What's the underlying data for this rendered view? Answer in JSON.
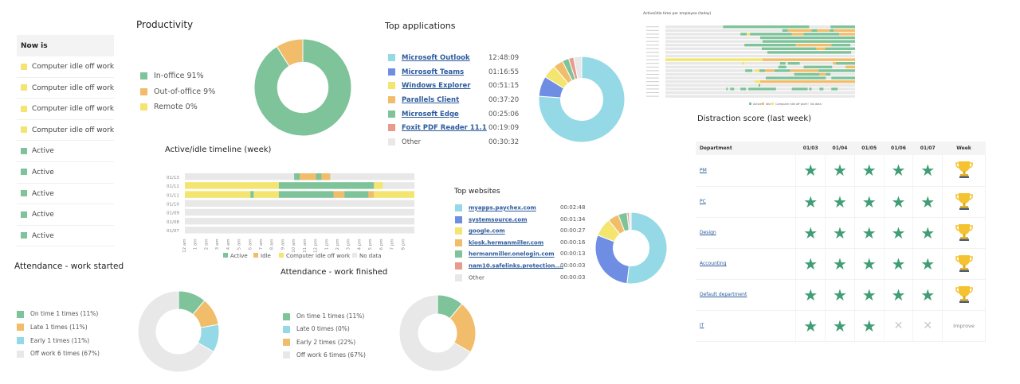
{
  "now_is": {
    "header": "Now is",
    "rows": [
      {
        "status": "Computer idle off work",
        "color": "#f3e56f"
      },
      {
        "status": "Computer idle off work",
        "color": "#f3e56f"
      },
      {
        "status": "Computer idle off work",
        "color": "#f3e56f"
      },
      {
        "status": "Computer idle off work",
        "color": "#f3e56f"
      },
      {
        "status": "Active",
        "color": "#7ec39a"
      },
      {
        "status": "Active",
        "color": "#7ec39a"
      },
      {
        "status": "Active",
        "color": "#7ec39a"
      },
      {
        "status": "Active",
        "color": "#7ec39a"
      },
      {
        "status": "Active",
        "color": "#7ec39a"
      }
    ]
  },
  "productivity": {
    "title": "Productivity",
    "legend": [
      {
        "label": "In-office 91%",
        "color": "#7ec39a"
      },
      {
        "label": "Out-of-office 9%",
        "color": "#f2bd6a"
      },
      {
        "label": "Remote 0%",
        "color": "#f3e56f"
      }
    ]
  },
  "top_applications": {
    "title": "Top applications",
    "items": [
      {
        "name": "Microsoft Outlook",
        "time": "12:48:09",
        "color": "#94d9e5",
        "link": true
      },
      {
        "name": "Microsoft Teams",
        "time": "01:16:55",
        "color": "#6f8ee3",
        "link": true
      },
      {
        "name": "Windows Explorer",
        "time": "00:51:15",
        "color": "#f3e56f",
        "link": true
      },
      {
        "name": "Parallels Client",
        "time": "00:37:20",
        "color": "#f2bd6a",
        "link": true
      },
      {
        "name": "Microsoft Edge",
        "time": "00:25:06",
        "color": "#7ec39a",
        "link": true
      },
      {
        "name": "Foxit PDF Reader 11.1",
        "time": "00:19:09",
        "color": "#e89a8c",
        "link": true
      },
      {
        "name": "Other",
        "time": "00:30:32",
        "color": "#e8e8e8",
        "link": false
      }
    ]
  },
  "per_employee": {
    "title": "Active/idle time per employee (today)",
    "legend": [
      {
        "label": "Active",
        "color": "#7ec39a"
      },
      {
        "label": "Idle",
        "color": "#f2bd6a"
      },
      {
        "label": "Computer idle off work",
        "color": "#f3e56f"
      },
      {
        "label": "No data",
        "color": "#e8e8e8"
      }
    ]
  },
  "timeline": {
    "title": "Active/idle timeline (week)",
    "legend": [
      {
        "label": "Active",
        "color": "#7ec39a"
      },
      {
        "label": "Idle",
        "color": "#f2bd6a"
      },
      {
        "label": "Computer idle off work",
        "color": "#f3e56f"
      },
      {
        "label": "No data",
        "color": "#e8e8e8"
      }
    ]
  },
  "top_websites": {
    "title": "Top websites",
    "items": [
      {
        "name": "myapps.paychex.com",
        "time": "00:02:48",
        "color": "#94d9e5",
        "link": true
      },
      {
        "name": "systemsource.com",
        "time": "00:01:34",
        "color": "#6f8ee3",
        "link": true
      },
      {
        "name": "google.com",
        "time": "00:00:27",
        "color": "#f3e56f",
        "link": true
      },
      {
        "name": "kiosk.hermanmiller.com",
        "time": "00:00:16",
        "color": "#f2bd6a",
        "link": true
      },
      {
        "name": "hermanmiller.onelogin.com",
        "time": "00:00:13",
        "color": "#7ec39a",
        "link": true
      },
      {
        "name": "nam10.safelinks.protection....",
        "time": "00:00:03",
        "color": "#e89a8c",
        "link": true
      },
      {
        "name": "Other",
        "time": "00:00:03",
        "color": "#e8e8e8",
        "link": false
      }
    ]
  },
  "distraction": {
    "title": "Distraction score (last week)",
    "columns": [
      "Department",
      "01/03",
      "01/04",
      "01/05",
      "01/06",
      "01/07",
      "Week"
    ],
    "rows": [
      {
        "department": "PM",
        "days": [
          "star",
          "star",
          "star",
          "star",
          "star"
        ],
        "week": "trophy"
      },
      {
        "department": "PC",
        "days": [
          "star",
          "star",
          "star",
          "star",
          "star"
        ],
        "week": "trophy"
      },
      {
        "department": "Design",
        "days": [
          "star",
          "star",
          "star",
          "star",
          "star"
        ],
        "week": "trophy"
      },
      {
        "department": "Accounting",
        "days": [
          "star",
          "star",
          "star",
          "star",
          "star"
        ],
        "week": "trophy"
      },
      {
        "department": "Default department",
        "days": [
          "star",
          "star",
          "star",
          "star",
          "star"
        ],
        "week": "trophy"
      },
      {
        "department": "IT",
        "days": [
          "star",
          "star",
          "star",
          "x",
          "x"
        ],
        "week": "Improve"
      }
    ]
  },
  "attendance_started": {
    "title": "Attendance - work started",
    "legend": [
      {
        "label": "On time 1 times (11%)",
        "color": "#7ec39a"
      },
      {
        "label": "Late 1 times (11%)",
        "color": "#f2bd6a"
      },
      {
        "label": "Early 1 times (11%)",
        "color": "#94d9e5"
      },
      {
        "label": "Off work 6 times (67%)",
        "color": "#e8e8e8"
      }
    ]
  },
  "attendance_finished": {
    "title": "Attendance - work finished",
    "legend": [
      {
        "label": "On time 1 times (11%)",
        "color": "#7ec39a"
      },
      {
        "label": "Late 0 times (0%)",
        "color": "#94d9e5"
      },
      {
        "label": "Early 2 times (22%)",
        "color": "#f2bd6a"
      },
      {
        "label": "Off work 6 times (67%)",
        "color": "#e8e8e8"
      }
    ]
  },
  "chart_data": [
    {
      "id": "productivity",
      "type": "pie",
      "title": "Productivity",
      "categories": [
        "In-office",
        "Out-of-office",
        "Remote"
      ],
      "values": [
        91,
        9,
        0
      ],
      "colors": [
        "#7ec39a",
        "#f2bd6a",
        "#f3e56f"
      ]
    },
    {
      "id": "top_applications",
      "type": "pie",
      "title": "Top applications",
      "categories": [
        "Microsoft Outlook",
        "Microsoft Teams",
        "Windows Explorer",
        "Parallels Client",
        "Microsoft Edge",
        "Foxit PDF Reader 11.1",
        "Other"
      ],
      "values": [
        46089,
        4615,
        3075,
        2240,
        1506,
        1149,
        1832
      ],
      "colors": [
        "#94d9e5",
        "#6f8ee3",
        "#f3e56f",
        "#f2bd6a",
        "#7ec39a",
        "#e89a8c",
        "#e8e8e8"
      ]
    },
    {
      "id": "top_websites",
      "type": "pie",
      "title": "Top websites",
      "categories": [
        "myapps.paychex.com",
        "systemsource.com",
        "google.com",
        "kiosk.hermanmiller.com",
        "hermanmiller.onelogin.com",
        "nam10.safelinks.protection....",
        "Other"
      ],
      "values": [
        168,
        94,
        27,
        16,
        13,
        3,
        3
      ],
      "colors": [
        "#94d9e5",
        "#6f8ee3",
        "#f3e56f",
        "#f2bd6a",
        "#7ec39a",
        "#e89a8c",
        "#e8e8e8"
      ]
    },
    {
      "id": "attendance_started",
      "type": "pie",
      "title": "Attendance - work started",
      "categories": [
        "On time",
        "Late",
        "Early",
        "Off work"
      ],
      "values": [
        1,
        1,
        1,
        6
      ],
      "colors": [
        "#7ec39a",
        "#f2bd6a",
        "#94d9e5",
        "#e8e8e8"
      ]
    },
    {
      "id": "attendance_finished",
      "type": "pie",
      "title": "Attendance - work finished",
      "categories": [
        "On time",
        "Late",
        "Early",
        "Off work"
      ],
      "values": [
        1,
        0,
        2,
        6
      ],
      "colors": [
        "#7ec39a",
        "#94d9e5",
        "#f2bd6a",
        "#e8e8e8"
      ]
    },
    {
      "id": "timeline",
      "type": "bar",
      "title": "Active/idle timeline (week)",
      "xlabel": "",
      "ylabel": "",
      "xlim": [
        0,
        21
      ],
      "x_ticks": [
        "12 am",
        "1 am",
        "2 am",
        "3 am",
        "4 am",
        "5 am",
        "6 am",
        "7 am",
        "8 am",
        "9 am",
        "10 am",
        "11 am",
        "12 pm",
        "1 pm",
        "2 pm",
        "3 pm",
        "4 pm",
        "5 pm",
        "6 pm",
        "7 pm",
        "8 pm"
      ],
      "categories": [
        "01/13",
        "01/12",
        "01/11",
        "01/10",
        "01/09",
        "01/08",
        "01/07"
      ],
      "segments": [
        [
          {
            "s": 10,
            "e": 10.5,
            "state": "active"
          },
          {
            "s": 10.5,
            "e": 12,
            "state": "idle"
          },
          {
            "s": 12,
            "e": 12.5,
            "state": "active"
          },
          {
            "s": 12.5,
            "e": 13.3,
            "state": "idle"
          }
        ],
        [
          {
            "s": 0,
            "e": 8.6,
            "state": "offwork"
          },
          {
            "s": 8.6,
            "e": 17.3,
            "state": "active"
          },
          {
            "s": 17.3,
            "e": 18.1,
            "state": "offwork"
          }
        ],
        [
          {
            "s": 0,
            "e": 6,
            "state": "offwork"
          },
          {
            "s": 6,
            "e": 6.3,
            "state": "active"
          },
          {
            "s": 6.3,
            "e": 8.6,
            "state": "offwork"
          },
          {
            "s": 8.6,
            "e": 13.6,
            "state": "active"
          },
          {
            "s": 13.6,
            "e": 14.6,
            "state": "idle"
          },
          {
            "s": 14.6,
            "e": 16.8,
            "state": "active"
          },
          {
            "s": 16.8,
            "e": 17.3,
            "state": "idle"
          },
          {
            "s": 17.3,
            "e": 21,
            "state": "offwork"
          }
        ],
        [],
        [],
        [],
        []
      ],
      "state_colors": {
        "active": "#7ec39a",
        "idle": "#f2bd6a",
        "offwork": "#f3e56f",
        "nodata": "#e8e8e8"
      },
      "legend": [
        "Active",
        "Idle",
        "Computer idle off work",
        "No data"
      ]
    },
    {
      "id": "per_employee",
      "type": "bar",
      "title": "Active/idle time per employee (today)",
      "xlim": [
        0,
        24
      ],
      "row_count": 20,
      "segments": [
        [
          {
            "s": 7.3,
            "e": 18.2,
            "state": "active"
          },
          {
            "s": 20.9,
            "e": 24,
            "state": "active"
          }
        ],
        [
          {
            "s": 14.8,
            "e": 15.5,
            "state": "active"
          },
          {
            "s": 15.5,
            "e": 18.5,
            "state": "idle"
          },
          {
            "s": 18.5,
            "e": 19.2,
            "state": "active"
          },
          {
            "s": 19.2,
            "e": 20.8,
            "state": "idle"
          },
          {
            "s": 20.8,
            "e": 21.3,
            "state": "active"
          },
          {
            "s": 21.3,
            "e": 24,
            "state": "idle"
          }
        ],
        [
          {
            "s": 9.5,
            "e": 10.3,
            "state": "active"
          },
          {
            "s": 10.3,
            "e": 10.7,
            "state": "offwork"
          },
          {
            "s": 10.7,
            "e": 16,
            "state": "active"
          },
          {
            "s": 16,
            "e": 17.5,
            "state": "idle"
          },
          {
            "s": 17.5,
            "e": 19.5,
            "state": "active"
          },
          {
            "s": 19.5,
            "e": 22,
            "state": "active"
          },
          {
            "s": 22,
            "e": 24,
            "state": "idle"
          }
        ],
        [
          {
            "s": 12,
            "e": 24,
            "state": "active"
          }
        ],
        [
          {
            "s": 12.3,
            "e": 24,
            "state": "active"
          }
        ],
        [
          {
            "s": 10,
            "e": 16.5,
            "state": "active"
          },
          {
            "s": 16.5,
            "e": 21,
            "state": "idle"
          },
          {
            "s": 21,
            "e": 23.4,
            "state": "active"
          }
        ],
        [
          {
            "s": 12.2,
            "e": 19.1,
            "state": "active"
          },
          {
            "s": 19.1,
            "e": 20.2,
            "state": "idle"
          },
          {
            "s": 20.2,
            "e": 24,
            "state": "active"
          }
        ],
        [
          {
            "s": 12.9,
            "e": 23.5,
            "state": "active"
          }
        ],
        [],
        [
          {
            "s": 0,
            "e": 12.3,
            "state": "offwork"
          },
          {
            "s": 12.3,
            "e": 24,
            "state": "idle"
          }
        ],
        [
          {
            "s": 9.7,
            "e": 10,
            "state": "offwork"
          },
          {
            "s": 14.5,
            "e": 15.2,
            "state": "active"
          },
          {
            "s": 15.5,
            "e": 17,
            "state": "active"
          },
          {
            "s": 21.2,
            "e": 21.6,
            "state": "idle"
          },
          {
            "s": 21.6,
            "e": 24,
            "state": "active"
          }
        ],
        [
          {
            "s": 14.3,
            "e": 15.3,
            "state": "active"
          },
          {
            "s": 17.5,
            "e": 21.1,
            "state": "active"
          },
          {
            "s": 22.8,
            "e": 24,
            "state": "idle"
          }
        ],
        [
          {
            "s": 10.1,
            "e": 11,
            "state": "active"
          },
          {
            "s": 11.3,
            "e": 11.9,
            "state": "offwork"
          },
          {
            "s": 11.9,
            "e": 12.6,
            "state": "active"
          },
          {
            "s": 12.6,
            "e": 13.8,
            "state": "idle"
          },
          {
            "s": 13.8,
            "e": 15.8,
            "state": "active"
          },
          {
            "s": 15.8,
            "e": 19.4,
            "state": "idle"
          },
          {
            "s": 19.4,
            "e": 24,
            "state": "active"
          }
        ],
        [
          {
            "s": 16.3,
            "e": 19.5,
            "state": "active"
          },
          {
            "s": 19.5,
            "e": 20.3,
            "state": "idle"
          },
          {
            "s": 20.3,
            "e": 20.9,
            "state": "active"
          }
        ],
        [
          {
            "s": 12.7,
            "e": 17.2,
            "state": "active"
          },
          {
            "s": 17.2,
            "e": 20.3,
            "state": "active"
          },
          {
            "s": 21,
            "e": 24,
            "state": "active"
          }
        ],
        [
          {
            "s": 11.3,
            "e": 12,
            "state": "offwork"
          },
          {
            "s": 12,
            "e": 24,
            "state": "idle"
          }
        ],
        [
          {
            "s": 11.8,
            "e": 12,
            "state": "active"
          }
        ],
        [
          {
            "s": 7.7,
            "e": 7.9,
            "state": "active"
          },
          {
            "s": 8.2,
            "e": 8.7,
            "state": "active"
          },
          {
            "s": 9.5,
            "e": 10.2,
            "state": "active"
          },
          {
            "s": 10.5,
            "e": 14,
            "state": "active"
          },
          {
            "s": 16,
            "e": 18,
            "state": "active"
          },
          {
            "s": 18.2,
            "e": 18.5,
            "state": "active"
          },
          {
            "s": 19.5,
            "e": 20,
            "state": "active"
          },
          {
            "s": 21,
            "e": 21.8,
            "state": "active"
          }
        ],
        [],
        []
      ],
      "state_colors": {
        "active": "#7ec39a",
        "idle": "#f2bd6a",
        "offwork": "#f3e56f",
        "nodata": "#e8e8e8"
      },
      "legend": [
        "Active",
        "Idle",
        "Computer idle off work",
        "No data"
      ]
    }
  ]
}
